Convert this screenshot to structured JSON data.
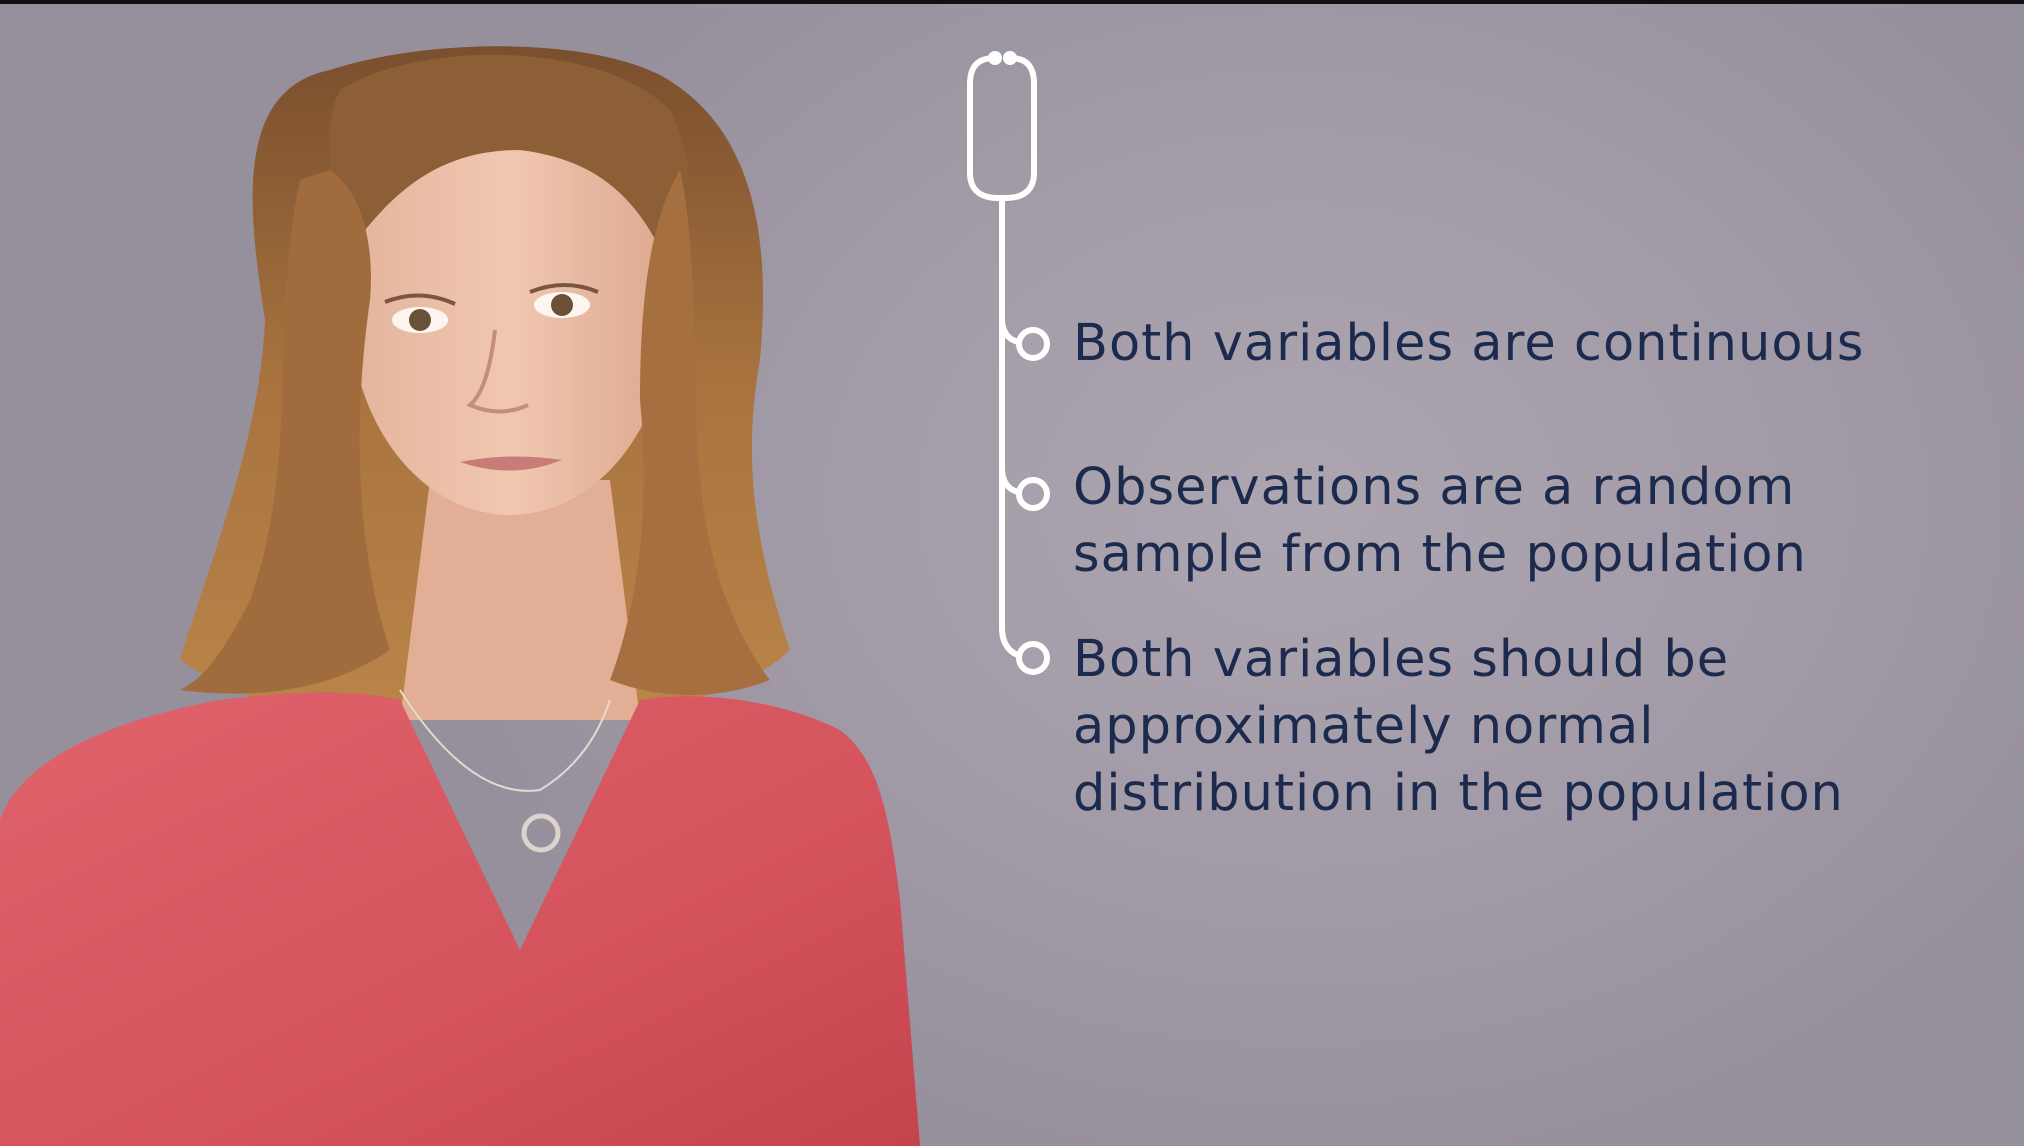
{
  "slide": {
    "background_color": "#a59fab",
    "text_color": "#1c2a4d",
    "graphic_icon": "stethoscope-icon",
    "points": [
      "Both variables are continuous",
      "Observations are a random\nsample from the population",
      "Both variables should be\napproximately normal\ndistribution in the population"
    ]
  },
  "presenter": {
    "shirt_color": "#d95a62",
    "hair_color": "#9c6a3e"
  }
}
